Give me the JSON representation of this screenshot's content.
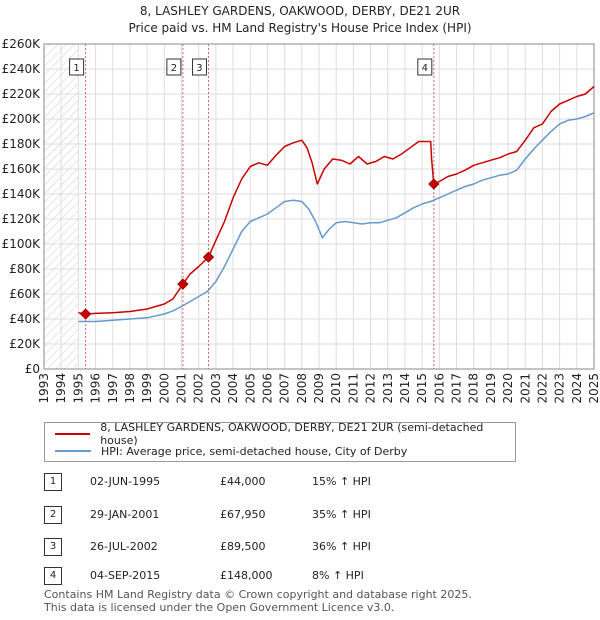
{
  "title": "8, LASHLEY GARDENS, OAKWOOD, DERBY, DE21 2UR",
  "subtitle": "Price paid vs. HM Land Registry's House Price Index (HPI)",
  "colors": {
    "property": "#cc0000",
    "hpi": "#6699cc",
    "marker_line": "#dd6666",
    "grid": "#dddddd",
    "hatch": "#cccccc"
  },
  "chart_data": {
    "type": "line",
    "title": "8, LASHLEY GARDENS, OAKWOOD, DERBY, DE21 2UR",
    "xlim": [
      1993,
      2025
    ],
    "ylim": [
      0,
      260000
    ],
    "y_ticks": [
      0,
      20000,
      40000,
      60000,
      80000,
      100000,
      120000,
      140000,
      160000,
      180000,
      200000,
      220000,
      240000,
      260000
    ],
    "y_tick_labels": [
      "£0",
      "£20K",
      "£40K",
      "£60K",
      "£80K",
      "£100K",
      "£120K",
      "£140K",
      "£160K",
      "£180K",
      "£200K",
      "£220K",
      "£240K",
      "£260K"
    ],
    "x_ticks": [
      1993,
      1994,
      1995,
      1996,
      1997,
      1998,
      1999,
      2000,
      2001,
      2002,
      2003,
      2004,
      2005,
      2006,
      2007,
      2008,
      2009,
      2010,
      2011,
      2012,
      2013,
      2014,
      2015,
      2016,
      2017,
      2018,
      2019,
      2020,
      2021,
      2022,
      2023,
      2024,
      2025
    ],
    "x_tick_labels": [
      "1993",
      "1994",
      "1995",
      "1996",
      "1997",
      "1998",
      "1999",
      "2000",
      "2001",
      "2002",
      "2003",
      "2004",
      "2005",
      "2006",
      "2007",
      "2008",
      "2009",
      "2010",
      "2011",
      "2012",
      "2013",
      "2014",
      "2015",
      "2016",
      "2017",
      "2018",
      "2019",
      "2020",
      "2021",
      "2022",
      "2023",
      "2024",
      "2025"
    ],
    "hatched_until": 1995.0,
    "series": [
      {
        "name": "8, LASHLEY GARDENS, OAKWOOD, DERBY, DE21 2UR (semi-detached house)",
        "x": [
          1995.0,
          1995.42,
          1996.0,
          1997.0,
          1998.0,
          1999.0,
          2000.0,
          2000.5,
          2001.08,
          2001.5,
          2002.0,
          2002.57,
          2003.0,
          2003.5,
          2004.0,
          2004.5,
          2005.0,
          2005.5,
          2006.0,
          2006.5,
          2007.0,
          2007.5,
          2008.0,
          2008.3,
          2008.6,
          2008.9,
          2009.3,
          2009.8,
          2010.3,
          2010.8,
          2011.3,
          2011.8,
          2012.3,
          2012.8,
          2013.3,
          2013.8,
          2014.3,
          2014.8,
          2015.5,
          2015.55,
          2015.68,
          2016.0,
          2016.5,
          2017.0,
          2017.5,
          2018.0,
          2018.5,
          2019.0,
          2019.5,
          2020.0,
          2020.5,
          2021.0,
          2021.5,
          2022.0,
          2022.5,
          2023.0,
          2023.5,
          2024.0,
          2024.5,
          2025.0
        ],
        "values": [
          45000,
          44000,
          44500,
          45000,
          46000,
          48000,
          52000,
          56000,
          67950,
          76000,
          82000,
          89500,
          103000,
          118000,
          137000,
          152000,
          162000,
          165000,
          163000,
          171000,
          178000,
          181000,
          183000,
          177000,
          165000,
          148000,
          160000,
          168000,
          167000,
          164000,
          170000,
          164000,
          166000,
          170000,
          168000,
          172000,
          177000,
          182000,
          182000,
          168000,
          148000,
          150000,
          154000,
          156000,
          159000,
          163000,
          165000,
          167000,
          169000,
          172000,
          174000,
          183000,
          193000,
          196000,
          206000,
          212000,
          215000,
          218000,
          220000,
          226000
        ]
      },
      {
        "name": "HPI: Average price, semi-detached house, City of Derby",
        "x": [
          1995.0,
          1996.0,
          1997.0,
          1998.0,
          1999.0,
          2000.0,
          2000.5,
          2001.0,
          2001.5,
          2002.0,
          2002.5,
          2003.0,
          2003.5,
          2004.0,
          2004.5,
          2005.0,
          2005.5,
          2006.0,
          2006.5,
          2007.0,
          2007.5,
          2008.0,
          2008.4,
          2008.8,
          2009.2,
          2009.6,
          2010.0,
          2010.5,
          2011.0,
          2011.5,
          2012.0,
          2012.5,
          2013.0,
          2013.5,
          2014.0,
          2014.5,
          2015.0,
          2015.5,
          2016.0,
          2016.5,
          2017.0,
          2017.5,
          2018.0,
          2018.5,
          2019.0,
          2019.5,
          2020.0,
          2020.5,
          2021.0,
          2021.5,
          2022.0,
          2022.5,
          2023.0,
          2023.5,
          2024.0,
          2024.5,
          2025.0
        ],
        "values": [
          38000,
          38000,
          39000,
          40000,
          41000,
          44000,
          46500,
          50000,
          54000,
          58000,
          62000,
          70000,
          82000,
          96000,
          110000,
          118000,
          121000,
          124000,
          129000,
          134000,
          135000,
          134000,
          128000,
          118000,
          105000,
          112000,
          117000,
          118000,
          117000,
          116000,
          117000,
          117000,
          119000,
          121000,
          125000,
          129000,
          132000,
          134000,
          137000,
          140000,
          143000,
          146000,
          148000,
          151000,
          153000,
          155000,
          156000,
          159000,
          168000,
          176000,
          183000,
          190000,
          196000,
          199000,
          200000,
          202000,
          205000
        ]
      }
    ],
    "transactions": [
      {
        "num": "1",
        "x": 1995.42,
        "value": 44000,
        "date": "02-JUN-1995",
        "price": "£44,000",
        "hpi": "15% ↑ HPI"
      },
      {
        "num": "2",
        "x": 2001.08,
        "value": 67950,
        "date": "29-JAN-2001",
        "price": "£67,950",
        "hpi": "35% ↑ HPI"
      },
      {
        "num": "3",
        "x": 2002.57,
        "value": 89500,
        "date": "26-JUL-2002",
        "price": "£89,500",
        "hpi": "36% ↑ HPI"
      },
      {
        "num": "4",
        "x": 2015.68,
        "value": 148000,
        "date": "04-SEP-2015",
        "price": "£148,000",
        "hpi": "8% ↑ HPI"
      }
    ],
    "legend": [
      "8, LASHLEY GARDENS, OAKWOOD, DERBY, DE21 2UR (semi-detached house)",
      "HPI: Average price, semi-detached house, City of Derby"
    ]
  },
  "footer": {
    "line1": "Contains HM Land Registry data © Crown copyright and database right 2025.",
    "line2": "This data is licensed under the Open Government Licence v3.0."
  }
}
